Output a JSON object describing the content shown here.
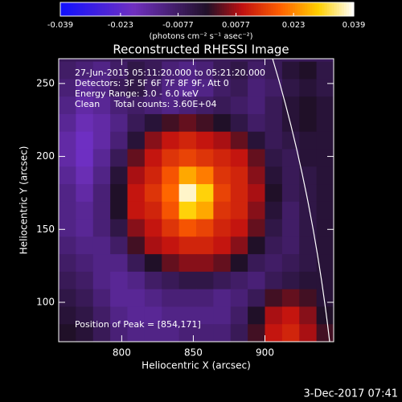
{
  "chart_data": {
    "type": "image",
    "title": "Reconstructed RHESSI Image",
    "xlabel": "Heliocentric X (arcsec)",
    "ylabel": "Heliocentric Y (arcsec)",
    "xlim": [
      756,
      948
    ],
    "ylim": [
      73,
      267
    ],
    "xticks": [
      800,
      850,
      900
    ],
    "yticks": [
      100,
      150,
      200,
      250
    ],
    "colorbar": {
      "label": "(photons cm⁻² s⁻¹ asec⁻²)",
      "zlim": [
        -0.039,
        0.039
      ],
      "ticks": [
        -0.039,
        -0.023,
        -0.0077,
        0.0077,
        0.023,
        0.039
      ]
    },
    "annotations": [
      "27-Jun-2015 05:11:20.000 to 05:21:20.000",
      "Detectors: 3F 5F 6F 7F 8F 9F, Att 0",
      "Energy Range: 3.0 - 6.0 keV",
      "Clean     Total counts: 3.60E+04"
    ],
    "peak_label": "Position of Peak = [854,171]",
    "footer": "3-Dec-2017 07:41",
    "x": [
      762,
      774,
      786,
      798,
      810,
      822,
      834,
      846,
      858,
      870,
      882,
      894,
      906,
      918,
      930,
      942
    ],
    "y": [
      259,
      247,
      235,
      223,
      211,
      199,
      187,
      175,
      163,
      151,
      139,
      127,
      115,
      103,
      91,
      79
    ],
    "z": [
      [
        -0.008,
        -0.01,
        -0.012,
        -0.008,
        -0.004,
        -0.006,
        -0.01,
        -0.012,
        -0.01,
        -0.006,
        -0.004,
        -0.008,
        -0.006,
        -0.002,
        0.0,
        -0.004
      ],
      [
        -0.01,
        -0.014,
        -0.012,
        -0.006,
        -0.004,
        -0.008,
        -0.012,
        -0.014,
        -0.012,
        -0.008,
        -0.006,
        -0.01,
        -0.008,
        -0.004,
        -0.002,
        -0.004
      ],
      [
        -0.012,
        -0.016,
        -0.014,
        -0.01,
        -0.008,
        -0.01,
        -0.012,
        -0.01,
        -0.008,
        -0.006,
        -0.008,
        -0.01,
        -0.006,
        -0.002,
        0.0,
        -0.002
      ],
      [
        -0.014,
        -0.018,
        -0.016,
        -0.012,
        -0.006,
        -0.002,
        0.002,
        0.004,
        0.002,
        0.0,
        -0.004,
        -0.008,
        -0.006,
        -0.002,
        0.0,
        -0.002
      ],
      [
        -0.016,
        -0.02,
        -0.016,
        -0.01,
        -0.002,
        0.006,
        0.01,
        0.012,
        0.01,
        0.008,
        0.004,
        -0.002,
        -0.006,
        -0.004,
        -0.002,
        -0.002
      ],
      [
        -0.016,
        -0.02,
        -0.014,
        -0.006,
        0.004,
        0.01,
        0.014,
        0.016,
        0.014,
        0.012,
        0.01,
        0.004,
        -0.004,
        -0.006,
        -0.002,
        -0.002
      ],
      [
        -0.014,
        -0.018,
        -0.012,
        -0.002,
        0.008,
        0.012,
        0.018,
        0.026,
        0.022,
        0.014,
        0.012,
        0.006,
        -0.002,
        -0.006,
        -0.004,
        -0.002
      ],
      [
        -0.012,
        -0.016,
        -0.01,
        0.0,
        0.01,
        0.014,
        0.02,
        0.037,
        0.03,
        0.016,
        0.012,
        0.008,
        0.0,
        -0.006,
        -0.004,
        -0.002
      ],
      [
        -0.012,
        -0.014,
        -0.01,
        0.0,
        0.01,
        0.012,
        0.018,
        0.03,
        0.026,
        0.014,
        0.012,
        0.006,
        -0.002,
        -0.008,
        -0.004,
        -0.002
      ],
      [
        -0.012,
        -0.014,
        -0.01,
        -0.004,
        0.006,
        0.01,
        0.014,
        0.018,
        0.016,
        0.012,
        0.01,
        0.004,
        -0.004,
        -0.008,
        -0.004,
        -0.002
      ],
      [
        -0.01,
        -0.012,
        -0.012,
        -0.008,
        0.002,
        0.008,
        0.01,
        0.012,
        0.012,
        0.01,
        0.006,
        0.0,
        -0.006,
        -0.008,
        -0.004,
        -0.002
      ],
      [
        -0.008,
        -0.01,
        -0.012,
        -0.012,
        -0.006,
        0.0,
        0.004,
        0.006,
        0.006,
        0.004,
        0.0,
        -0.006,
        -0.008,
        -0.006,
        -0.004,
        -0.002
      ],
      [
        -0.006,
        -0.008,
        -0.012,
        -0.014,
        -0.012,
        -0.008,
        -0.006,
        -0.004,
        -0.004,
        -0.006,
        -0.008,
        -0.01,
        -0.006,
        -0.004,
        -0.002,
        -0.002
      ],
      [
        -0.004,
        -0.006,
        -0.01,
        -0.014,
        -0.014,
        -0.012,
        -0.01,
        -0.01,
        -0.01,
        -0.012,
        -0.01,
        -0.006,
        0.002,
        0.004,
        0.002,
        -0.002
      ],
      [
        -0.002,
        -0.004,
        -0.008,
        -0.012,
        -0.014,
        -0.014,
        -0.012,
        -0.012,
        -0.012,
        -0.012,
        -0.008,
        0.0,
        0.008,
        0.01,
        0.006,
        0.0
      ],
      [
        0.0,
        -0.002,
        -0.006,
        -0.01,
        -0.012,
        -0.012,
        -0.012,
        -0.01,
        -0.01,
        -0.01,
        -0.006,
        0.002,
        0.01,
        0.012,
        0.008,
        0.002
      ]
    ]
  }
}
